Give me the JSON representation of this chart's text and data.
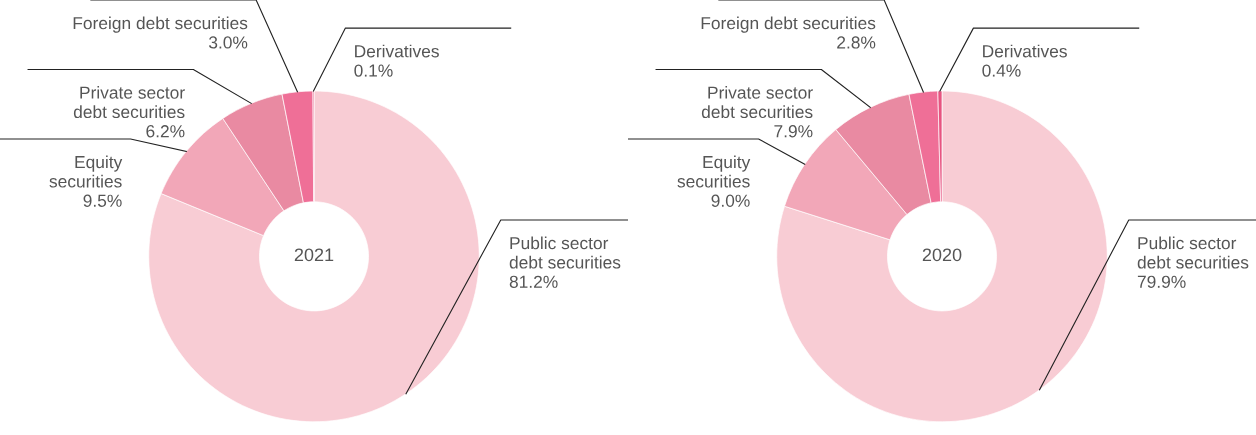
{
  "chart_data": [
    {
      "type": "donut",
      "title": "2021",
      "categories": [
        "Public sector\ndebt securities",
        "Equity\nsecurities",
        "Private sector\ndebt securities",
        "Foreign debt securities",
        "Derivatives"
      ],
      "values": [
        81.2,
        9.5,
        6.2,
        3.0,
        0.1
      ],
      "value_labels": [
        "81.2%",
        "9.5%",
        "6.2%",
        "3.0%",
        "0.1%"
      ],
      "colors": [
        "#f8ccd4",
        "#f2a7b8",
        "#e98aa2",
        "#ef6f97",
        "#e75480"
      ],
      "legend": false
    },
    {
      "type": "donut",
      "title": "2020",
      "categories": [
        "Public sector\ndebt securities",
        "Equity\nsecurities",
        "Private sector\ndebt securities",
        "Foreign debt securities",
        "Derivatives"
      ],
      "values": [
        79.9,
        9.0,
        7.9,
        2.8,
        0.4
      ],
      "value_labels": [
        "79.9%",
        "9.0%",
        "7.9%",
        "2.8%",
        "0.4%"
      ],
      "colors": [
        "#f8ccd4",
        "#f2a7b8",
        "#e98aa2",
        "#ef6f97",
        "#e75480"
      ],
      "legend": false
    }
  ]
}
